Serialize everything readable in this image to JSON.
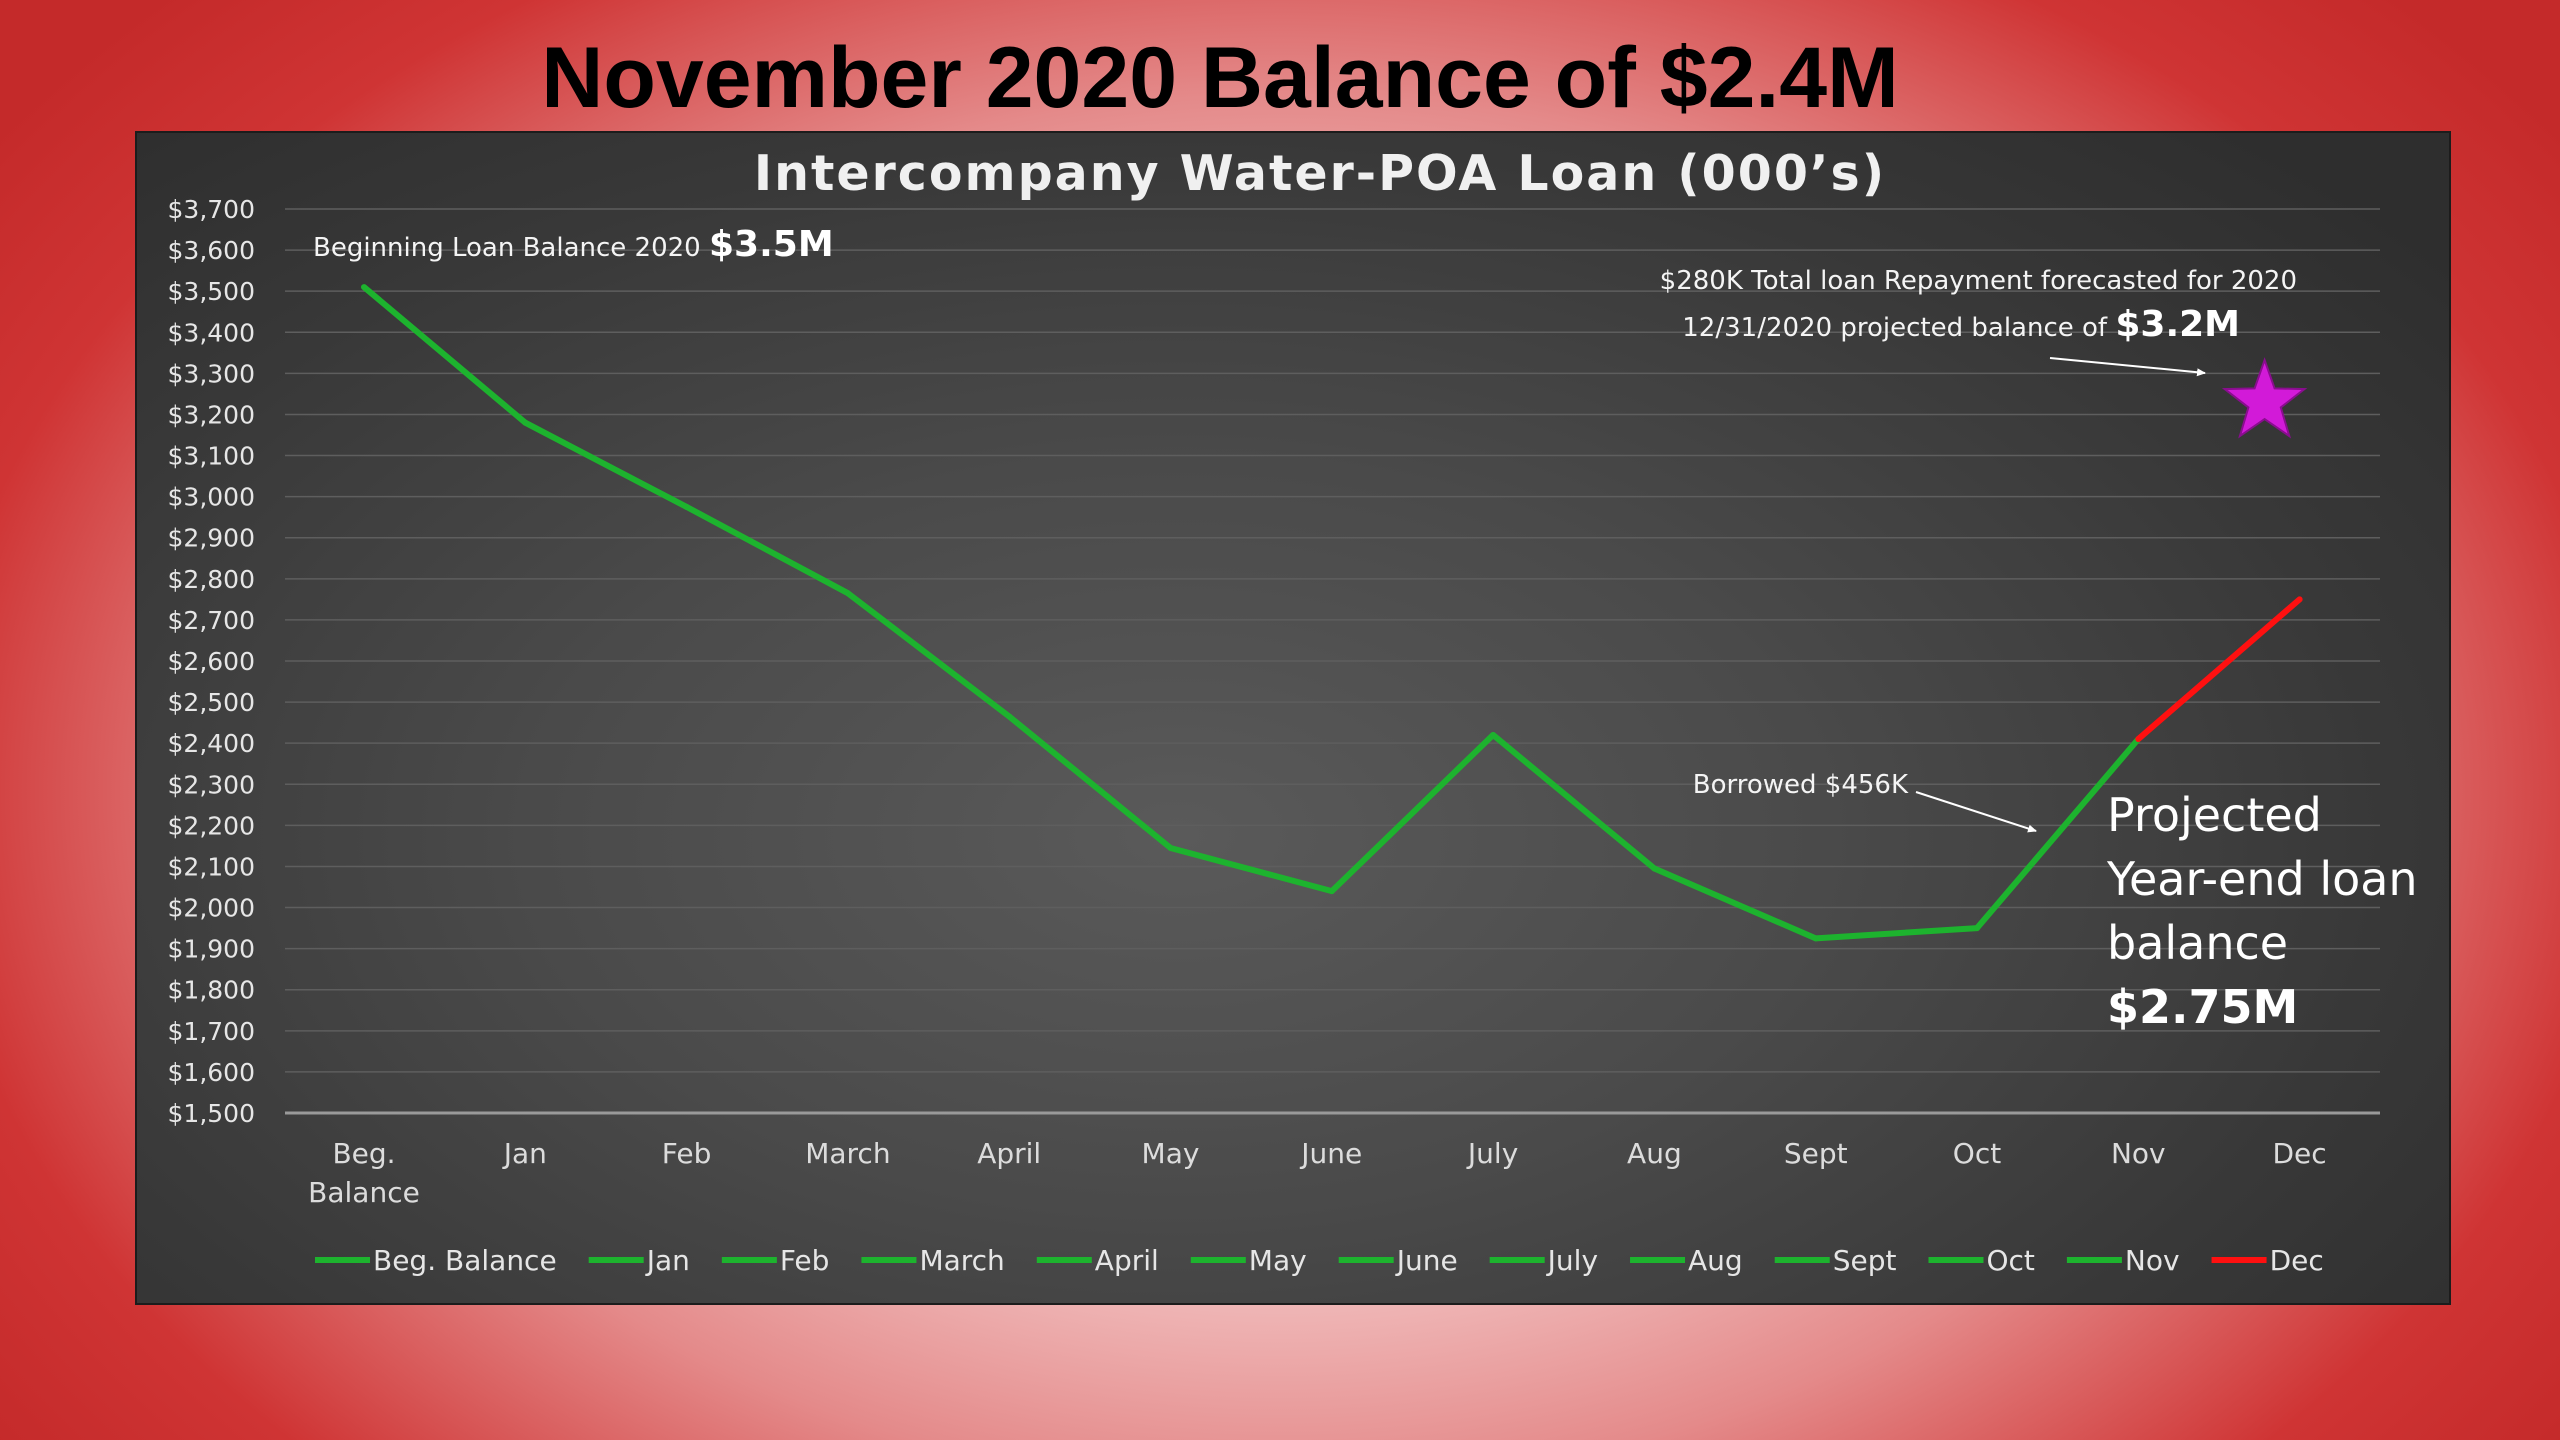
{
  "slide_title": "November 2020 Balance of $2.4M",
  "colors": {
    "green_series": "#1db32e",
    "red_series": "#ff1010",
    "star": "#d21ad8",
    "gridline": "#5e5e5e"
  },
  "chart_data": {
    "type": "line",
    "title": "Intercompany Water-POA Loan (000’s)",
    "xlabel": "",
    "ylabel": "",
    "categories": [
      "Beg. Balance",
      "Jan",
      "Feb",
      "March",
      "April",
      "May",
      "June",
      "July",
      "Aug",
      "Sept",
      "Oct",
      "Nov",
      "Dec"
    ],
    "values": [
      3510,
      3180,
      2975,
      2765,
      2465,
      2145,
      2040,
      2420,
      2095,
      1925,
      1950,
      2410,
      2750
    ],
    "segment_colors": [
      "green",
      "green",
      "green",
      "green",
      "green",
      "green",
      "green",
      "green",
      "green",
      "green",
      "green",
      "red"
    ],
    "ylim": [
      1500,
      3700
    ],
    "y_ticks": [
      "$3,700",
      "$3,600",
      "$3,500",
      "$3,400",
      "$3,300",
      "$3,200",
      "$3,100",
      "$3,000",
      "$2,900",
      "$2,800",
      "$2,700",
      "$2,600",
      "$2,500",
      "$2,400",
      "$2,300",
      "$2,200",
      "$2,100",
      "$2,000",
      "$1,900",
      "$1,800",
      "$1,700",
      "$1,600",
      "$1,500"
    ],
    "x_tick_labels": [
      [
        "Beg.",
        "Balance"
      ],
      [
        "Jan"
      ],
      [
        "Feb"
      ],
      [
        "March"
      ],
      [
        "April"
      ],
      [
        "May"
      ],
      [
        "June"
      ],
      [
        "July"
      ],
      [
        "Aug"
      ],
      [
        "Sept"
      ],
      [
        "Oct"
      ],
      [
        "Nov"
      ],
      [
        "Dec"
      ]
    ],
    "grid": true,
    "legend_placement": "bottom",
    "legend": [
      {
        "label": "Beg. Balance",
        "color": "green"
      },
      {
        "label": "Jan",
        "color": "green"
      },
      {
        "label": "Feb",
        "color": "green"
      },
      {
        "label": "March",
        "color": "green"
      },
      {
        "label": "April",
        "color": "green"
      },
      {
        "label": "May",
        "color": "green"
      },
      {
        "label": "June",
        "color": "green"
      },
      {
        "label": "July",
        "color": "green"
      },
      {
        "label": "Aug",
        "color": "green"
      },
      {
        "label": "Sept",
        "color": "green"
      },
      {
        "label": "Oct",
        "color": "green"
      },
      {
        "label": "Nov",
        "color": "green"
      },
      {
        "label": "Dec",
        "color": "red"
      }
    ],
    "annotations": {
      "beginning_prefix": "Beginning Loan Balance 2020 ",
      "beginning_value": "$3.5M",
      "repayment_line": "$280K Total loan Repayment  forecasted for 2020",
      "projected_prefix": "12/31/2020 projected balance of ",
      "projected_value": "$3.2M",
      "projected_marker_value": 3230,
      "borrowed": "Borrowed $456K",
      "yearend_line1": "Projected",
      "yearend_line2": "Year-end loan",
      "yearend_line3": "balance",
      "yearend_value": "$2.75M"
    }
  }
}
